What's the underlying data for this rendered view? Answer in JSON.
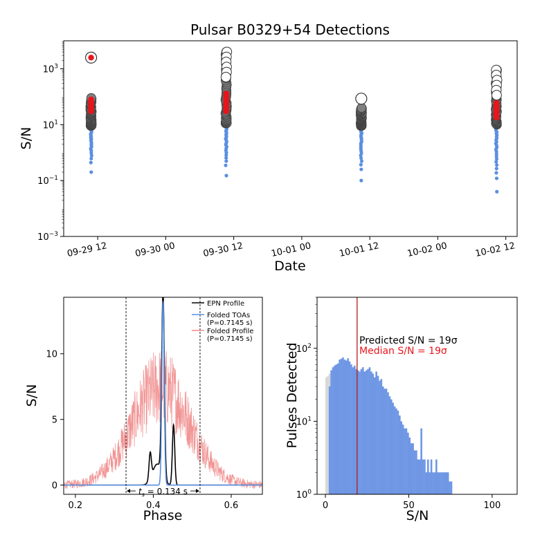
{
  "chart_data": [
    {
      "type": "scatter",
      "title": "Pulsar B0329+54 Detections",
      "xlabel": "Date",
      "ylabel": "S/N",
      "yscale": "log",
      "ylim": [
        0.001,
        10000
      ],
      "xlim": [
        "2021-09-29 06:00",
        "2021-10-02 14:00"
      ],
      "xticks": [
        {
          "t": "2021-09-29 12:00",
          "label": "09-29 12"
        },
        {
          "t": "2021-09-30 00:00",
          "label": "09-30 00"
        },
        {
          "t": "2021-09-30 12:00",
          "label": "09-30 12"
        },
        {
          "t": "2021-10-01 00:00",
          "label": "10-01 00"
        },
        {
          "t": "2021-10-01 12:00",
          "label": "10-01 12"
        },
        {
          "t": "2021-10-02 00:00",
          "label": "10-02 00"
        },
        {
          "t": "2021-10-02 12:00",
          "label": "10-02 12"
        }
      ],
      "yticks": [
        {
          "v": 0.001,
          "base": "10",
          "exp": "−3"
        },
        {
          "v": 0.1,
          "base": "10",
          "exp": "−1"
        },
        {
          "v": 10,
          "base": "10",
          "exp": "1"
        },
        {
          "v": 1000,
          "base": "10",
          "exp": "3"
        }
      ],
      "colors": {
        "toa": "#5b8fe0",
        "ring": "#444444",
        "fill": "#808080",
        "median": "#e8151b"
      },
      "epochs": [
        {
          "t": "2021-09-29 10:50",
          "blue_min": 0.2,
          "blue_max": 12,
          "gray_min": 9,
          "gray_max": 90,
          "outliers": [
            2500
          ],
          "median": [
            30,
            80,
            2500
          ]
        },
        {
          "t": "2021-09-30 10:40",
          "blue_min": 0.15,
          "blue_max": 12,
          "gray_min": 11,
          "gray_max": 4000,
          "outliers": [],
          "median": [
            30,
            130
          ]
        },
        {
          "t": "2021-10-01 10:30",
          "blue_min": 0.1,
          "blue_max": 12,
          "gray_min": 9,
          "gray_max": 40,
          "outliers": [
            85
          ],
          "median": []
        },
        {
          "t": "2021-10-02 10:20",
          "blue_min": 0.04,
          "blue_max": 12,
          "gray_min": 10,
          "gray_max": 900,
          "outliers": [],
          "median": [
            18,
            60
          ]
        }
      ]
    },
    {
      "type": "line",
      "xlabel": "Phase",
      "ylabel": "S/N",
      "xlim": [
        0.17,
        0.68
      ],
      "ylim": [
        -0.7,
        14.3
      ],
      "xticks": [
        0.2,
        0.4,
        0.6
      ],
      "yticks": [
        0,
        5,
        10
      ],
      "vlines": [
        0.33,
        0.52
      ],
      "annotation": {
        "prefix": "t",
        "sub": "s",
        "text": " = 0.134 s"
      },
      "series": [
        {
          "name": "EPN Profile",
          "color": "#000000",
          "peaks": [
            {
              "x": 0.392,
              "w": 0.003,
              "a": 2.0
            },
            {
              "x": 0.425,
              "w": 0.0035,
              "a": 13.9
            },
            {
              "x": 0.452,
              "w": 0.003,
              "a": 4.6
            }
          ]
        },
        {
          "name": "Folded TOAs",
          "note": "(P=0.7145 s)",
          "color": "#5b8fe0",
          "peak": {
            "x": 0.425,
            "w": 0.003,
            "a": 14.0
          }
        },
        {
          "name": "Folded Profile",
          "note": "(P=0.7145 s)",
          "color": "#f08a8a",
          "envelope": {
            "center": 0.42,
            "width": 0.075,
            "amplitude": 7.5,
            "noise": 5.5
          }
        }
      ]
    },
    {
      "type": "bar",
      "xlabel": "S/N",
      "ylabel": "Pulses Detected",
      "yscale": "log",
      "xlim": [
        -5,
        115
      ],
      "ylim": [
        1,
        500
      ],
      "xticks": [
        0,
        50,
        100
      ],
      "yticks": [
        {
          "v": 1,
          "base": "10",
          "exp": "0"
        },
        {
          "v": 10,
          "base": "10",
          "exp": "1"
        },
        {
          "v": 100,
          "base": "10",
          "exp": "2"
        }
      ],
      "bin_width": 1,
      "gray_bins": {
        "start": 0,
        "counts": [
          40,
          42,
          45,
          30
        ]
      },
      "blue_bins": {
        "start": 2,
        "counts": [
          30,
          50,
          55,
          58,
          60,
          62,
          70,
          72,
          75,
          70,
          68,
          73,
          66,
          60,
          55,
          58,
          52,
          50,
          48,
          52,
          55,
          48,
          50,
          52,
          55,
          48,
          45,
          40,
          48,
          42,
          36,
          38,
          30,
          28,
          28,
          25,
          22,
          20,
          18,
          16,
          15,
          14,
          12,
          10,
          9,
          8,
          8,
          7,
          6,
          5,
          5,
          4,
          4,
          3,
          3,
          8,
          3,
          3,
          2,
          3,
          2,
          3,
          2,
          2,
          3,
          2,
          2,
          2,
          2,
          2,
          2,
          2,
          1.5,
          1.5
        ]
      },
      "median": 19,
      "text_predicted": "Predicted S/N = 19σ",
      "text_median": "Median S/N = 19σ",
      "colors": {
        "blue": "#6f97e4",
        "gray": "#d7d7d7",
        "median": "#e8151b",
        "predicted": "#000000",
        "median_line": "#b01b1b"
      }
    }
  ]
}
